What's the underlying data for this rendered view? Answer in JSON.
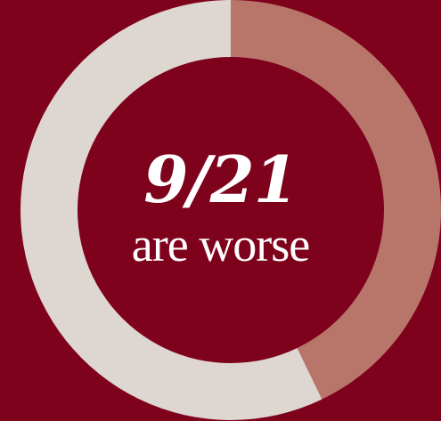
{
  "chart_data": {
    "type": "pie",
    "donut": true,
    "numerator": 9,
    "denominator": 21,
    "slices": [
      {
        "label": "worse",
        "value": 9,
        "color": "#b8766b"
      },
      {
        "label": "",
        "value": 12,
        "color": "#ddd6d1"
      }
    ],
    "center_text": {
      "fraction": "9/21",
      "caption": "are worse"
    },
    "background_color": "#7f021d"
  }
}
